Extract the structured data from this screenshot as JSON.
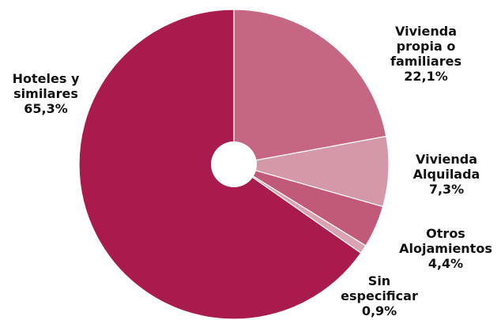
{
  "chart_data": {
    "type": "pie",
    "title": "",
    "slices": [
      {
        "label_lines": [
          "Vivienda",
          "propia o",
          "familiares"
        ],
        "value_text": "22,1%",
        "value": 22.1,
        "color": "#C56782"
      },
      {
        "label_lines": [
          "Vivienda",
          "Alquilada"
        ],
        "value_text": "7,3%",
        "value": 7.3,
        "color": "#D598A9"
      },
      {
        "label_lines": [
          "Otros",
          "Alojamientos"
        ],
        "value_text": "4,4%",
        "value": 4.4,
        "color": "#C15A78"
      },
      {
        "label_lines": [
          "Sin",
          "especificar"
        ],
        "value_text": "0,9%",
        "value": 0.9,
        "color": "#DBA3B2"
      },
      {
        "label_lines": [
          "Hoteles y",
          "similares"
        ],
        "value_text": "65,3%",
        "value": 65.3,
        "color": "#A91B4C"
      }
    ],
    "start_angle_deg": 0,
    "direction": "clockwise",
    "donut_hole": true,
    "legend": "none"
  }
}
